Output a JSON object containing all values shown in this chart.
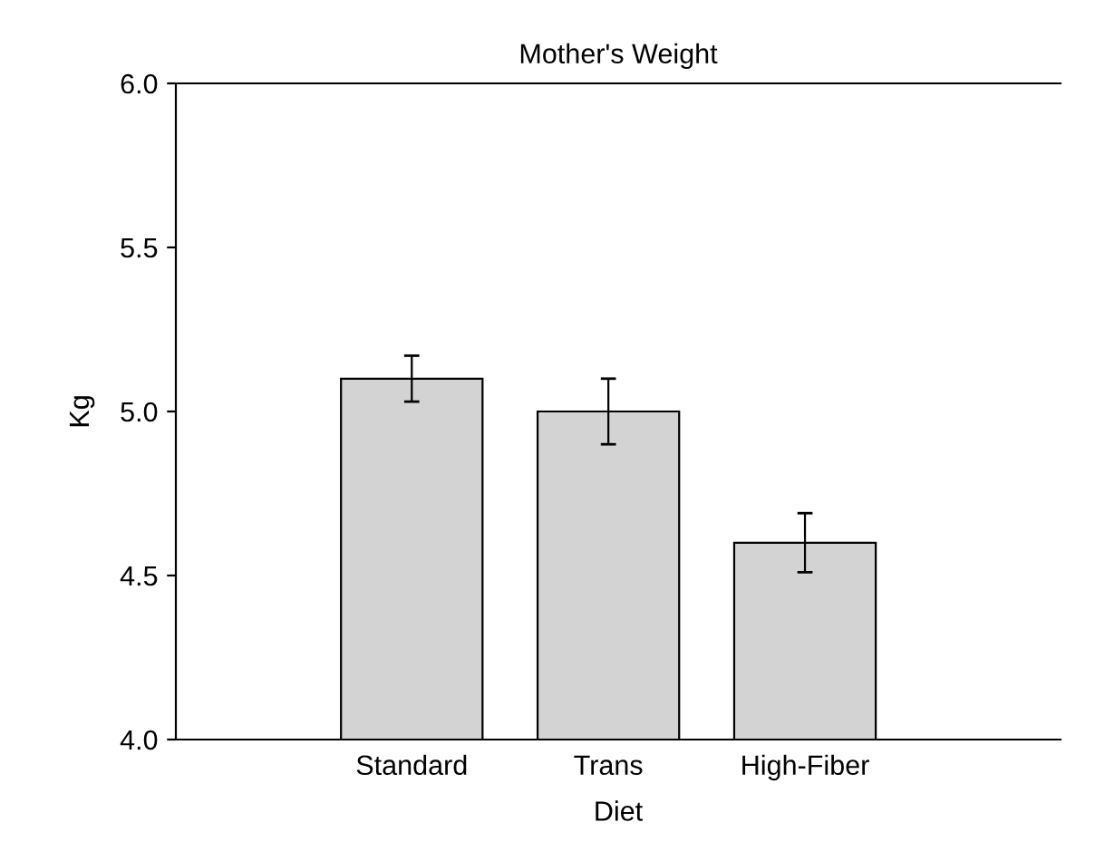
{
  "chart_data": {
    "type": "bar",
    "title": "Mother's Weight",
    "xlabel": "Diet",
    "ylabel": "Kg",
    "categories": [
      "Standard",
      "Trans",
      "High-Fiber"
    ],
    "values": [
      5.1,
      5.0,
      4.6
    ],
    "errors": [
      0.07,
      0.1,
      0.09
    ],
    "color": "#d3d3d3",
    "ylim": [
      4.0,
      6.0
    ],
    "yticks": [
      {
        "value": 4.0,
        "label": "4.0"
      },
      {
        "value": 4.5,
        "label": "4.5"
      },
      {
        "value": 5.0,
        "label": "5.0"
      },
      {
        "value": 5.5,
        "label": "5.5"
      },
      {
        "value": 6.0,
        "label": "6.0"
      }
    ],
    "grid": false,
    "legend": false
  }
}
